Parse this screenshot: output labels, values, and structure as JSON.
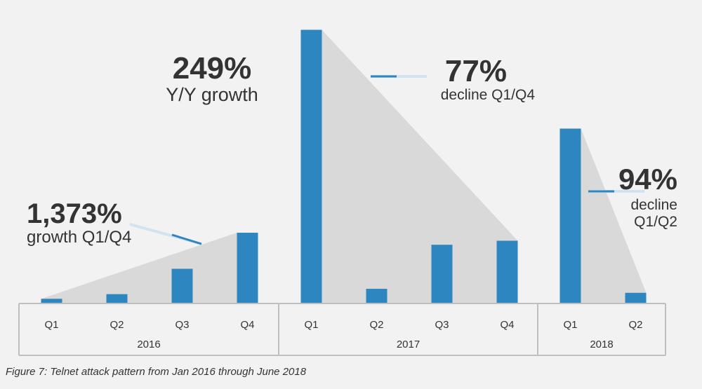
{
  "chart_data": {
    "type": "bar",
    "years": [
      {
        "label": "2016",
        "quarters": [
          "Q1",
          "Q2",
          "Q3",
          "Q4"
        ],
        "values": [
          7,
          14,
          52,
          106
        ]
      },
      {
        "label": "2017",
        "quarters": [
          "Q1",
          "Q2",
          "Q3",
          "Q4"
        ],
        "values": [
          410,
          22,
          88,
          94
        ]
      },
      {
        "label": "2018",
        "quarters": [
          "Q1",
          "Q2"
        ],
        "values": [
          262,
          16
        ]
      }
    ],
    "ylim": [
      0,
      420
    ],
    "grid": false,
    "legend": "none",
    "annotations": {
      "yoy": {
        "value": "249%",
        "text": "Y/Y growth"
      },
      "growth_2016": {
        "value": "1,373%",
        "text": "growth Q1/Q4"
      },
      "decline_2017": {
        "value": "77%",
        "text": "decline Q1/Q4"
      },
      "decline_2018": {
        "value": "94%",
        "text_line1": "decline",
        "text_line2": "Q1/Q2"
      }
    },
    "caption": "Figure 7: Telnet attack pattern from Jan 2016 through June 2018"
  },
  "colors": {
    "bar": "#2e86c1",
    "wedge": "#d9d9d9",
    "axis": "#bfbfbf",
    "text": "#333333"
  }
}
